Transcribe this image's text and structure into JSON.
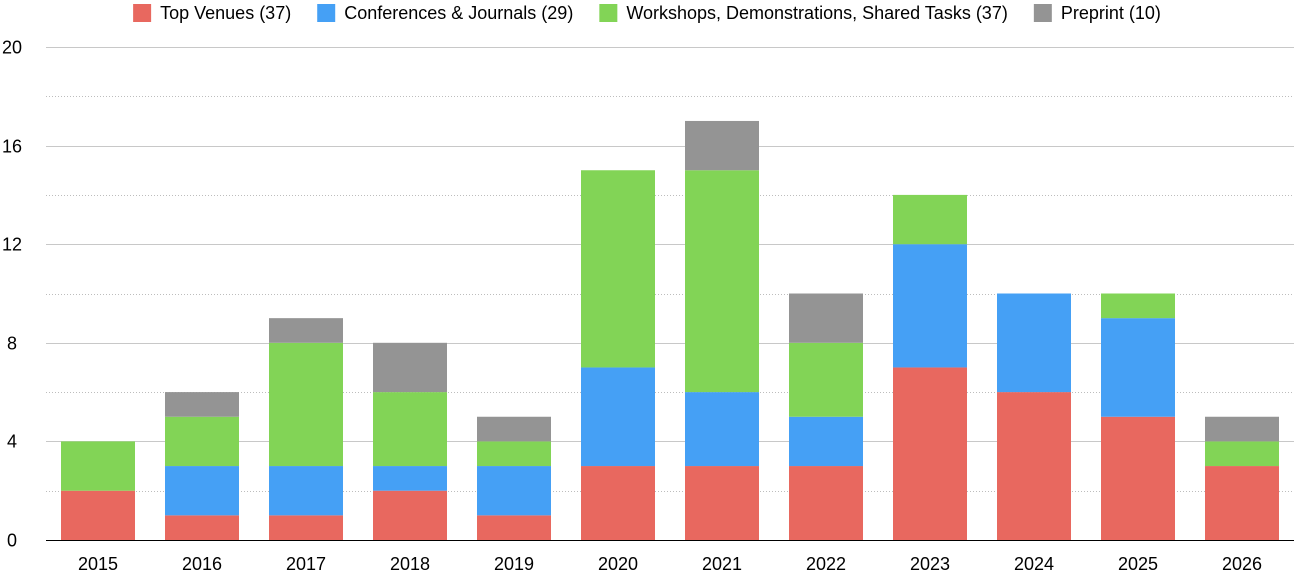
{
  "chart_data": {
    "type": "bar",
    "stacked": true,
    "categories": [
      "2015",
      "2016",
      "2017",
      "2018",
      "2019",
      "2020",
      "2021",
      "2022",
      "2023",
      "2024",
      "2025",
      "2026"
    ],
    "series": [
      {
        "name": "Top Venues (37)",
        "color": "#E8685F",
        "values": [
          2,
          1,
          1,
          2,
          1,
          3,
          3,
          3,
          7,
          6,
          5,
          3
        ]
      },
      {
        "name": "Conferences & Journals (29)",
        "color": "#45A0F5",
        "values": [
          0,
          2,
          2,
          1,
          2,
          4,
          3,
          2,
          5,
          4,
          4,
          0
        ]
      },
      {
        "name": "Workshops, Demonstrations, Shared Tasks (37)",
        "color": "#82D456",
        "values": [
          2,
          2,
          5,
          3,
          1,
          8,
          9,
          3,
          2,
          0,
          1,
          1
        ]
      },
      {
        "name": "Preprint (10)",
        "color": "#949494",
        "values": [
          0,
          1,
          1,
          2,
          1,
          0,
          2,
          2,
          0,
          0,
          0,
          1
        ]
      }
    ],
    "ylim": [
      0,
      20
    ],
    "yticks": [
      0,
      4,
      8,
      12,
      16,
      20
    ],
    "minor_grid_step": 2,
    "grid": true,
    "legend_position": "top",
    "xlabel": "",
    "ylabel": "",
    "title": ""
  }
}
